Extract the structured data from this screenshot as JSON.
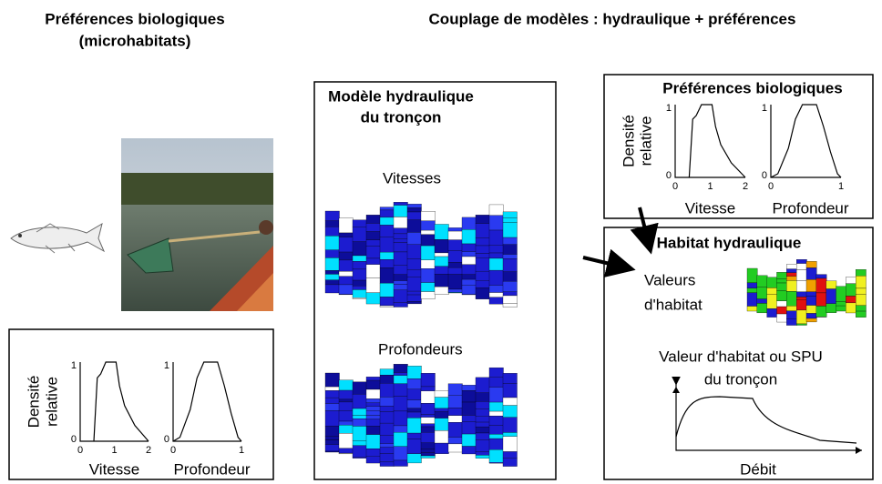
{
  "left_title": [
    "Préférences biologiques",
    "(microhabitats)"
  ],
  "main_title": "Couplage de modèles : hydraulique + préférences",
  "left_panel": {
    "y_label": [
      "Densité",
      "relative"
    ],
    "speed_y_ticks": [
      1,
      0
    ],
    "speed_x_ticks": [
      0,
      1,
      2
    ],
    "depth_y_ticks": [
      1,
      0
    ],
    "depth_x_ticks": [
      0,
      1
    ],
    "x_labels": [
      "Vitesse",
      "Profondeur"
    ]
  },
  "hydraulic_model": {
    "title": [
      "Modèle hydraulique",
      "du tronçon"
    ],
    "velocity_label": "Vitesses",
    "depth_label": "Profondeurs"
  },
  "right_panel": {
    "title": "Préférences biologiques",
    "y_label": [
      "Densité",
      "relative"
    ],
    "speed_y_ticks": [
      1,
      0
    ],
    "speed_x_ticks": [
      0,
      1,
      2
    ],
    "depth_y_ticks": [
      1,
      0
    ],
    "depth_x_ticks": [
      0,
      1
    ],
    "x_labels": [
      "Vitesse",
      "Profondeur"
    ]
  },
  "habitat": {
    "title": "Habitat hydraulique",
    "values_label": [
      "Valeurs",
      "d'habitat"
    ],
    "curve_title": [
      "Valeur d'habitat ou SPU",
      "du tronçon"
    ],
    "x_label": "Débit"
  }
}
